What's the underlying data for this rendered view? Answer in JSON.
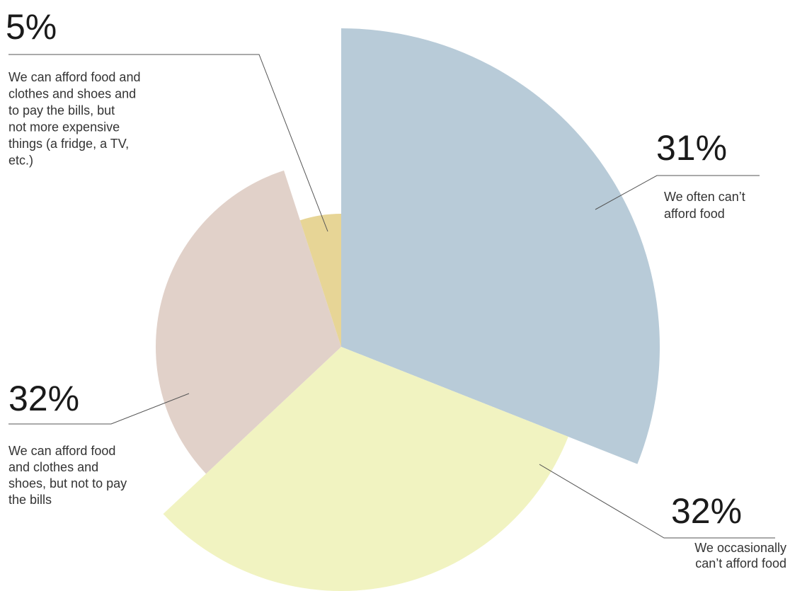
{
  "chart_data": {
    "type": "pie",
    "title": "",
    "slices": [
      {
        "label_lines": [
          "We often can’t",
          "afford food"
        ],
        "value": 31,
        "percent_label": "31%",
        "color": "#b8cbd8"
      },
      {
        "label_lines": [
          "We occasionally",
          "can’t afford food"
        ],
        "value": 32,
        "percent_label": "32%",
        "color": "#f1f3c1"
      },
      {
        "label_lines": [
          "We can afford food",
          "and clothes and",
          "shoes, but not to pay",
          "the bills"
        ],
        "value": 32,
        "percent_label": "32%",
        "color": "#e1d1c9"
      },
      {
        "label_lines": [
          "We can afford food and",
          "clothes and shoes and",
          "to pay the bills, but",
          "not more expensive",
          "things (a fridge, a TV,",
          "etc.)"
        ],
        "value": 5,
        "percent_label": "5%",
        "color": "#e7d596"
      }
    ]
  }
}
